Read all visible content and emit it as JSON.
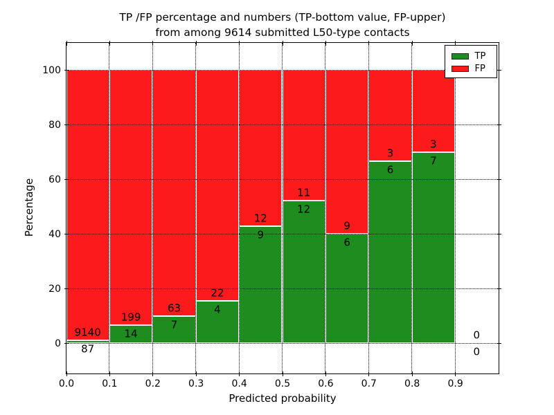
{
  "figure": {
    "title_line1": "TP /FP percentage and numbers (TP-bottom value, FP-upper)",
    "title_line2": "from among 9614 submitted L50-type contacts"
  },
  "chart_data": {
    "type": "bar",
    "stacked": true,
    "orientation": "vertical",
    "title": "TP /FP percentage and numbers (TP-bottom value, FP-upper) from among 9614 submitted L50-type contacts",
    "xlabel": "Predicted probability",
    "ylabel": "Percentage",
    "total_contacts": 9614,
    "bins": [
      {
        "x_start": 0.0,
        "x_end": 0.1,
        "tp": 87,
        "fp": 9140,
        "tp_percent": 0.94
      },
      {
        "x_start": 0.1,
        "x_end": 0.2,
        "tp": 14,
        "fp": 199,
        "tp_percent": 6.57
      },
      {
        "x_start": 0.2,
        "x_end": 0.3,
        "tp": 7,
        "fp": 63,
        "tp_percent": 10.0
      },
      {
        "x_start": 0.3,
        "x_end": 0.4,
        "tp": 4,
        "fp": 22,
        "tp_percent": 15.38
      },
      {
        "x_start": 0.4,
        "x_end": 0.5,
        "tp": 9,
        "fp": 12,
        "tp_percent": 42.86
      },
      {
        "x_start": 0.5,
        "x_end": 0.6,
        "tp": 12,
        "fp": 11,
        "tp_percent": 52.17
      },
      {
        "x_start": 0.6,
        "x_end": 0.7,
        "tp": 6,
        "fp": 9,
        "tp_percent": 40.0
      },
      {
        "x_start": 0.7,
        "x_end": 0.8,
        "tp": 6,
        "fp": 3,
        "tp_percent": 66.67
      },
      {
        "x_start": 0.8,
        "x_end": 0.9,
        "tp": 7,
        "fp": 3,
        "tp_percent": 70.0
      },
      {
        "x_start": 0.9,
        "x_end": 1.0,
        "tp": 0,
        "fp": 0,
        "tp_percent": 0
      }
    ],
    "xticks": [
      "0.0",
      "0.1",
      "0.2",
      "0.3",
      "0.4",
      "0.5",
      "0.6",
      "0.7",
      "0.8",
      "0.9"
    ],
    "yticks": [
      0,
      20,
      40,
      60,
      80,
      100
    ],
    "xlim": [
      0.0,
      1.0
    ],
    "ylim": [
      -11,
      110
    ],
    "grid": {
      "show": true,
      "style": "dotted"
    },
    "legend": {
      "position": "upper-right",
      "entries": [
        {
          "label": "TP",
          "color": "#1e8c1e"
        },
        {
          "label": "FP",
          "color": "#fb1b1b"
        }
      ]
    },
    "colors": {
      "tp": "#1e8c1e",
      "fp": "#fb1b1b",
      "bar_edge": "#ffffff",
      "text": "#000000",
      "background": "#ffffff"
    }
  }
}
